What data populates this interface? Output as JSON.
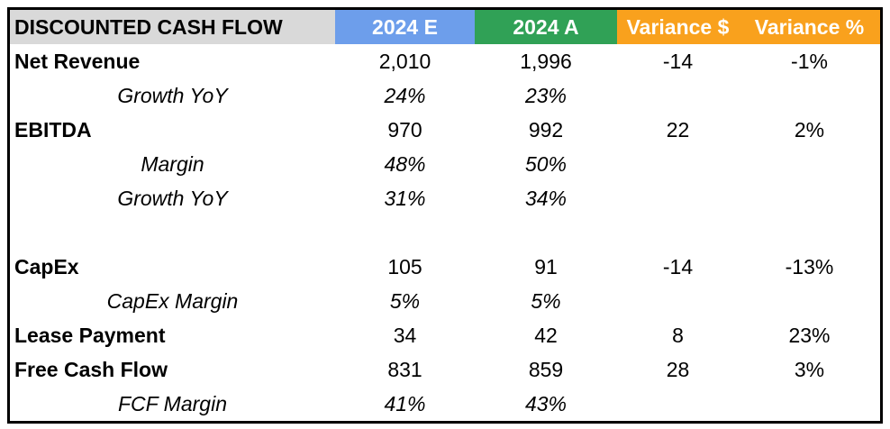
{
  "chart_data": {
    "type": "table",
    "title": "DISCOUNTED CASH FLOW",
    "header": {
      "label": "DISCOUNTED CASH FLOW",
      "label_bg": "#D9D9D9",
      "label_text_color": "#000000",
      "columns": [
        {
          "label": "2024 E",
          "bg": "#6D9EEB"
        },
        {
          "label": "2024 A",
          "bg": "#30A156"
        },
        {
          "label": "Variance $",
          "bg": "#F9A11D"
        },
        {
          "label": "Variance %",
          "bg": "#F9A11D"
        }
      ]
    },
    "rows": [
      {
        "label": "Net Revenue",
        "style": "bold",
        "values": [
          "2,010",
          "1,996",
          "-14",
          "-1%"
        ]
      },
      {
        "label": "Growth YoY",
        "style": "italic",
        "values": [
          "24%",
          "23%",
          "",
          ""
        ]
      },
      {
        "label": "EBITDA",
        "style": "bold",
        "values": [
          "970",
          "992",
          "22",
          "2%"
        ]
      },
      {
        "label": "Margin",
        "style": "italic",
        "values": [
          "48%",
          "50%",
          "",
          ""
        ]
      },
      {
        "label": "Growth YoY",
        "style": "italic",
        "values": [
          "31%",
          "34%",
          "",
          ""
        ]
      },
      {
        "label": "",
        "style": "blank",
        "values": [
          "",
          "",
          "",
          ""
        ]
      },
      {
        "label": "CapEx",
        "style": "bold",
        "values": [
          "105",
          "91",
          "-14",
          "-13%"
        ]
      },
      {
        "label": "CapEx Margin",
        "style": "italic",
        "values": [
          "5%",
          "5%",
          "",
          ""
        ]
      },
      {
        "label": "Lease Payment",
        "style": "bold",
        "values": [
          "34",
          "42",
          "8",
          "23%"
        ]
      },
      {
        "label": "Free Cash Flow",
        "style": "bold",
        "values": [
          "831",
          "859",
          "28",
          "3%"
        ]
      },
      {
        "label": "FCF Margin",
        "style": "italic",
        "values": [
          "41%",
          "43%",
          "",
          ""
        ]
      }
    ],
    "colors": {
      "header_gray": "#D9D9D9",
      "header_blue": "#6D9EEB",
      "header_green": "#30A156",
      "header_orange": "#F9A11D",
      "header_text": "#FFFFFF",
      "body_text": "#000000",
      "border": "#000000",
      "background": "#FFFFFF"
    }
  }
}
